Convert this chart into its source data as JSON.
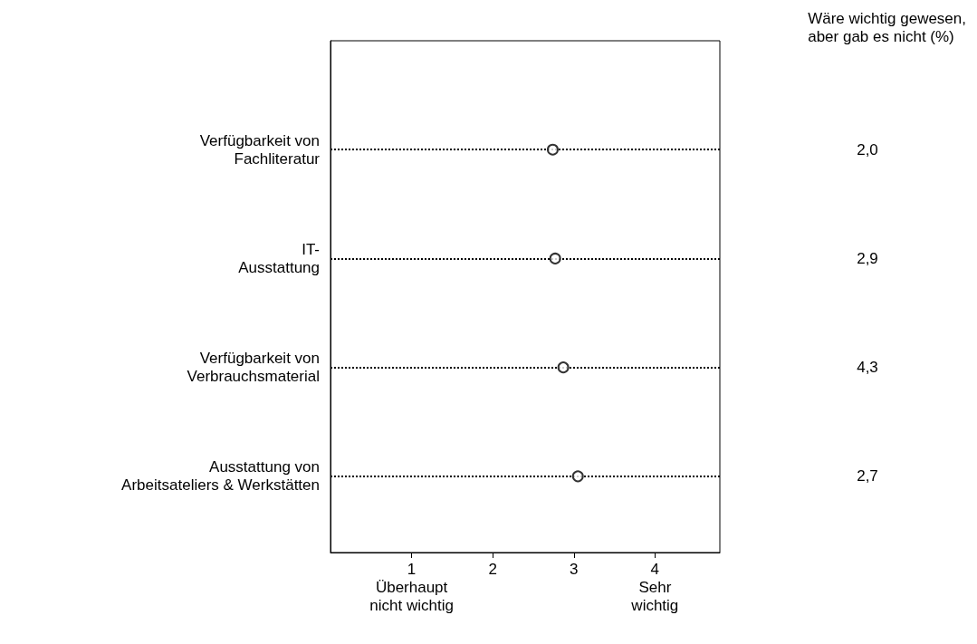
{
  "chart_data": {
    "type": "scatter",
    "orientation": "horizontal",
    "categories": [
      "Verfügbarkeit von\nFachliteratur",
      "IT-\nAusstattung",
      "Verfügbarkeit von\nVerbrauchsmaterial",
      "Ausstattung von\nArbeitsateliers & Werkstätten"
    ],
    "values": [
      2.74,
      2.77,
      2.87,
      3.05
    ],
    "color": "#000000",
    "marker": "circle",
    "grid": "y",
    "xlim": [
      0,
      4.8
    ],
    "xticks": [
      {
        "value": 1,
        "label": "1\nÜberhaupt\nnicht wichtig"
      },
      2,
      3,
      {
        "value": 4,
        "label": "4\nSehr\nwichtig"
      }
    ],
    "annotations": [
      "Wäre wichtig gewesen,\naber gab es nicht (%)",
      "2,0",
      "2,9",
      "4,3",
      "2,7"
    ]
  }
}
